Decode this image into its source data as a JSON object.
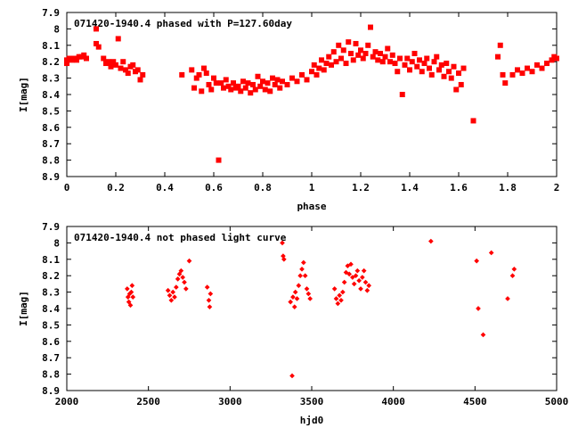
{
  "chart_data": [
    {
      "type": "scatter",
      "title": "071420-1940.4 phased with P=127.60day",
      "xlabel": "phase",
      "ylabel": "I[mag]",
      "xlim": [
        0,
        2
      ],
      "ylim": [
        7.9,
        8.9
      ],
      "y_inverted": true,
      "grid": false,
      "marker_color": "#ff0000",
      "x_ticks": [
        "0",
        "0.2",
        "0.4",
        "0.6",
        "0.8",
        "1",
        "1.2",
        "1.4",
        "1.6",
        "1.8",
        "2"
      ],
      "y_ticks": [
        "7.9",
        "8",
        "8.1",
        "8.2",
        "8.3",
        "8.4",
        "8.5",
        "8.6",
        "8.7",
        "8.8",
        "8.9"
      ],
      "points": [
        [
          0.0,
          8.19
        ],
        [
          0.0,
          8.21
        ],
        [
          0.01,
          8.18
        ],
        [
          0.02,
          8.19
        ],
        [
          0.03,
          8.18
        ],
        [
          0.04,
          8.19
        ],
        [
          0.05,
          8.17
        ],
        [
          0.06,
          8.17
        ],
        [
          0.07,
          8.16
        ],
        [
          0.08,
          8.18
        ],
        [
          0.12,
          8.0
        ],
        [
          0.12,
          8.09
        ],
        [
          0.13,
          8.11
        ],
        [
          0.15,
          8.18
        ],
        [
          0.16,
          8.21
        ],
        [
          0.17,
          8.2
        ],
        [
          0.18,
          8.23
        ],
        [
          0.19,
          8.2
        ],
        [
          0.2,
          8.22
        ],
        [
          0.21,
          8.06
        ],
        [
          0.22,
          8.24
        ],
        [
          0.23,
          8.2
        ],
        [
          0.24,
          8.25
        ],
        [
          0.25,
          8.27
        ],
        [
          0.26,
          8.23
        ],
        [
          0.27,
          8.22
        ],
        [
          0.28,
          8.26
        ],
        [
          0.29,
          8.25
        ],
        [
          0.3,
          8.31
        ],
        [
          0.31,
          8.28
        ],
        [
          0.47,
          8.28
        ],
        [
          0.51,
          8.25
        ],
        [
          0.52,
          8.36
        ],
        [
          0.53,
          8.3
        ],
        [
          0.54,
          8.28
        ],
        [
          0.55,
          8.38
        ],
        [
          0.56,
          8.24
        ],
        [
          0.57,
          8.27
        ],
        [
          0.58,
          8.34
        ],
        [
          0.59,
          8.37
        ],
        [
          0.6,
          8.3
        ],
        [
          0.61,
          8.33
        ],
        [
          0.62,
          8.8
        ],
        [
          0.63,
          8.33
        ],
        [
          0.64,
          8.36
        ],
        [
          0.65,
          8.31
        ],
        [
          0.66,
          8.35
        ],
        [
          0.67,
          8.37
        ],
        [
          0.68,
          8.33
        ],
        [
          0.69,
          8.36
        ],
        [
          0.7,
          8.35
        ],
        [
          0.71,
          8.38
        ],
        [
          0.72,
          8.32
        ],
        [
          0.73,
          8.36
        ],
        [
          0.74,
          8.33
        ],
        [
          0.75,
          8.39
        ],
        [
          0.76,
          8.34
        ],
        [
          0.77,
          8.37
        ],
        [
          0.78,
          8.29
        ],
        [
          0.79,
          8.35
        ],
        [
          0.8,
          8.32
        ],
        [
          0.81,
          8.37
        ],
        [
          0.82,
          8.33
        ],
        [
          0.83,
          8.38
        ],
        [
          0.84,
          8.3
        ],
        [
          0.85,
          8.34
        ],
        [
          0.86,
          8.31
        ],
        [
          0.87,
          8.36
        ],
        [
          0.88,
          8.32
        ],
        [
          0.9,
          8.34
        ],
        [
          0.92,
          8.3
        ],
        [
          0.94,
          8.32
        ],
        [
          0.96,
          8.28
        ],
        [
          0.98,
          8.31
        ],
        [
          1.0,
          8.26
        ],
        [
          1.01,
          8.22
        ],
        [
          1.02,
          8.28
        ],
        [
          1.03,
          8.24
        ],
        [
          1.04,
          8.19
        ],
        [
          1.05,
          8.25
        ],
        [
          1.06,
          8.21
        ],
        [
          1.07,
          8.17
        ],
        [
          1.08,
          8.22
        ],
        [
          1.09,
          8.14
        ],
        [
          1.1,
          8.2
        ],
        [
          1.11,
          8.1
        ],
        [
          1.12,
          8.18
        ],
        [
          1.13,
          8.13
        ],
        [
          1.14,
          8.21
        ],
        [
          1.15,
          8.08
        ],
        [
          1.16,
          8.15
        ],
        [
          1.17,
          8.19
        ],
        [
          1.18,
          8.09
        ],
        [
          1.19,
          8.16
        ],
        [
          1.2,
          8.13
        ],
        [
          1.21,
          8.18
        ],
        [
          1.22,
          8.15
        ],
        [
          1.23,
          8.1
        ],
        [
          1.24,
          7.99
        ],
        [
          1.25,
          8.17
        ],
        [
          1.26,
          8.14
        ],
        [
          1.27,
          8.19
        ],
        [
          1.28,
          8.15
        ],
        [
          1.29,
          8.2
        ],
        [
          1.3,
          8.17
        ],
        [
          1.31,
          8.12
        ],
        [
          1.32,
          8.2
        ],
        [
          1.33,
          8.16
        ],
        [
          1.34,
          8.21
        ],
        [
          1.35,
          8.26
        ],
        [
          1.36,
          8.18
        ],
        [
          1.37,
          8.4
        ],
        [
          1.38,
          8.22
        ],
        [
          1.39,
          8.18
        ],
        [
          1.4,
          8.25
        ],
        [
          1.41,
          8.2
        ],
        [
          1.42,
          8.15
        ],
        [
          1.43,
          8.23
        ],
        [
          1.44,
          8.19
        ],
        [
          1.45,
          8.26
        ],
        [
          1.46,
          8.21
        ],
        [
          1.47,
          8.18
        ],
        [
          1.48,
          8.24
        ],
        [
          1.49,
          8.28
        ],
        [
          1.5,
          8.2
        ],
        [
          1.51,
          8.17
        ],
        [
          1.52,
          8.25
        ],
        [
          1.53,
          8.22
        ],
        [
          1.54,
          8.29
        ],
        [
          1.55,
          8.21
        ],
        [
          1.56,
          8.26
        ],
        [
          1.57,
          8.3
        ],
        [
          1.58,
          8.23
        ],
        [
          1.59,
          8.37
        ],
        [
          1.6,
          8.27
        ],
        [
          1.61,
          8.34
        ],
        [
          1.62,
          8.24
        ],
        [
          1.66,
          8.56
        ],
        [
          1.76,
          8.17
        ],
        [
          1.77,
          8.1
        ],
        [
          1.78,
          8.28
        ],
        [
          1.79,
          8.33
        ],
        [
          1.82,
          8.28
        ],
        [
          1.84,
          8.25
        ],
        [
          1.86,
          8.27
        ],
        [
          1.88,
          8.24
        ],
        [
          1.9,
          8.26
        ],
        [
          1.92,
          8.22
        ],
        [
          1.94,
          8.24
        ],
        [
          1.96,
          8.21
        ],
        [
          1.98,
          8.19
        ],
        [
          1.99,
          8.17
        ],
        [
          2.0,
          8.18
        ]
      ]
    },
    {
      "type": "scatter",
      "title": "071420-1940.4 not phased light curve",
      "xlabel": "hjd0",
      "ylabel": "I[mag]",
      "xlim": [
        2000,
        5000
      ],
      "ylim": [
        7.9,
        8.9
      ],
      "y_inverted": true,
      "grid": false,
      "marker_color": "#ff0000",
      "x_ticks": [
        "2000",
        "2500",
        "3000",
        "3500",
        "4000",
        "4500",
        "5000"
      ],
      "y_ticks": [
        "7.9",
        "8",
        "8.1",
        "8.2",
        "8.3",
        "8.4",
        "8.5",
        "8.6",
        "8.7",
        "8.8",
        "8.9"
      ],
      "points": [
        [
          2370,
          8.28
        ],
        [
          2375,
          8.33
        ],
        [
          2380,
          8.36
        ],
        [
          2385,
          8.31
        ],
        [
          2390,
          8.38
        ],
        [
          2395,
          8.3
        ],
        [
          2400,
          8.26
        ],
        [
          2405,
          8.33
        ],
        [
          2620,
          8.29
        ],
        [
          2630,
          8.32
        ],
        [
          2640,
          8.35
        ],
        [
          2650,
          8.3
        ],
        [
          2660,
          8.33
        ],
        [
          2670,
          8.27
        ],
        [
          2680,
          8.22
        ],
        [
          2690,
          8.19
        ],
        [
          2700,
          8.17
        ],
        [
          2710,
          8.21
        ],
        [
          2720,
          8.24
        ],
        [
          2730,
          8.28
        ],
        [
          2750,
          8.11
        ],
        [
          2860,
          8.27
        ],
        [
          2870,
          8.35
        ],
        [
          2875,
          8.39
        ],
        [
          2880,
          8.31
        ],
        [
          3320,
          8.0
        ],
        [
          3325,
          8.08
        ],
        [
          3330,
          8.1
        ],
        [
          3370,
          8.36
        ],
        [
          3380,
          8.81
        ],
        [
          3385,
          8.33
        ],
        [
          3395,
          8.39
        ],
        [
          3400,
          8.3
        ],
        [
          3410,
          8.34
        ],
        [
          3420,
          8.26
        ],
        [
          3430,
          8.2
        ],
        [
          3440,
          8.16
        ],
        [
          3450,
          8.12
        ],
        [
          3460,
          8.2
        ],
        [
          3470,
          8.28
        ],
        [
          3480,
          8.31
        ],
        [
          3490,
          8.34
        ],
        [
          3640,
          8.28
        ],
        [
          3650,
          8.34
        ],
        [
          3660,
          8.37
        ],
        [
          3670,
          8.32
        ],
        [
          3680,
          8.35
        ],
        [
          3690,
          8.3
        ],
        [
          3700,
          8.24
        ],
        [
          3710,
          8.18
        ],
        [
          3720,
          8.14
        ],
        [
          3730,
          8.19
        ],
        [
          3740,
          8.13
        ],
        [
          3750,
          8.21
        ],
        [
          3760,
          8.25
        ],
        [
          3770,
          8.2
        ],
        [
          3780,
          8.17
        ],
        [
          3790,
          8.23
        ],
        [
          3800,
          8.28
        ],
        [
          3810,
          8.21
        ],
        [
          3820,
          8.17
        ],
        [
          3830,
          8.24
        ],
        [
          3840,
          8.29
        ],
        [
          3850,
          8.26
        ],
        [
          4230,
          7.99
        ],
        [
          4510,
          8.11
        ],
        [
          4520,
          8.4
        ],
        [
          4550,
          8.56
        ],
        [
          4600,
          8.06
        ],
        [
          4700,
          8.34
        ],
        [
          4730,
          8.2
        ],
        [
          4740,
          8.16
        ]
      ]
    }
  ]
}
